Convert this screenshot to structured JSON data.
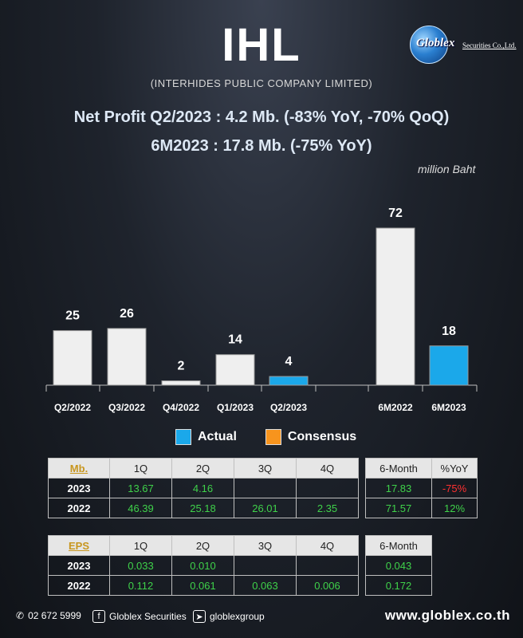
{
  "header": {
    "title": "IHL",
    "subtitle": "(INTERHIDES PUBLIC COMPANY LIMITED)",
    "headline1": "Net Profit  Q2/2023 : 4.2 Mb. (-83% YoY, -70% QoQ)",
    "headline2": "6M2023 : 17.8 Mb. (-75% YoY)",
    "unit": "million Baht"
  },
  "logo": {
    "name": "Globlex",
    "suffix": "Securities Co.,Ltd."
  },
  "colors": {
    "bar_gray": "#efefef",
    "bar_actual": "#1ba8ea",
    "consensus": "#f7941d",
    "green": "#3fd24a",
    "red": "#ff3030"
  },
  "chart_data": {
    "type": "bar",
    "categories": [
      "Q2/2022",
      "Q3/2022",
      "Q4/2022",
      "Q1/2023",
      "Q2/2023",
      "6M2022",
      "6M2023"
    ],
    "values": [
      25,
      26,
      2,
      14,
      4,
      72,
      18
    ],
    "labels": [
      "25",
      "26",
      "2",
      "14",
      "4",
      "72",
      "18"
    ],
    "highlighted": [
      false,
      false,
      false,
      false,
      true,
      false,
      true
    ],
    "ylim": [
      0,
      72
    ],
    "legend": [
      "Actual",
      "Consensus"
    ]
  },
  "profit_table": {
    "key": "Mb.",
    "columns": [
      "1Q",
      "2Q",
      "3Q",
      "4Q"
    ],
    "rows": [
      {
        "year": "2023",
        "q": [
          "13.67",
          "4.16",
          "",
          ""
        ]
      },
      {
        "year": "2022",
        "q": [
          "46.39",
          "25.18",
          "26.01",
          "2.35"
        ]
      }
    ]
  },
  "profit_side": {
    "columns": [
      "6-Month",
      "%YoY"
    ],
    "rows": [
      {
        "six": "17.83",
        "yoy": "-75%"
      },
      {
        "six": "71.57",
        "yoy": "12%"
      }
    ]
  },
  "eps_table": {
    "key": "EPS",
    "columns": [
      "1Q",
      "2Q",
      "3Q",
      "4Q"
    ],
    "rows": [
      {
        "year": "2023",
        "q": [
          "0.033",
          "0.010",
          "",
          ""
        ]
      },
      {
        "year": "2022",
        "q": [
          "0.112",
          "0.061",
          "0.063",
          "0.006"
        ]
      }
    ]
  },
  "eps_side": {
    "column": "6-Month",
    "rows": [
      "0.043",
      "0.172"
    ]
  },
  "footer": {
    "phone": "02 672 5999",
    "facebook": "Globlex Securities",
    "telegram": "globlexgroup",
    "website": "www.globlex.co.th"
  }
}
